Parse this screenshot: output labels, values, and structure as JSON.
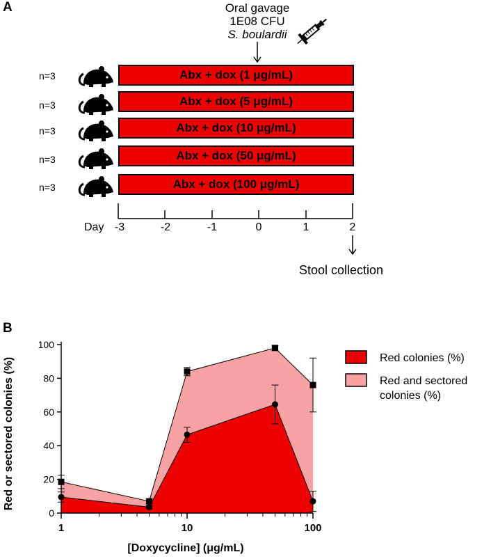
{
  "panel_a": {
    "letter": "A",
    "gavage": {
      "line1": "Oral gavage",
      "line2": "1E08 CFU",
      "line3": "S. boulardii"
    },
    "groups": [
      {
        "n": "n=3",
        "label": "Abx + dox (1 μg/mL)"
      },
      {
        "n": "n=3",
        "label": "Abx + dox (5 μg/mL)"
      },
      {
        "n": "n=3",
        "label": "Abx + dox (10 μg/mL)"
      },
      {
        "n": "n=3",
        "label": "Abx + dox (50 μg/mL)"
      },
      {
        "n": "n=3",
        "label": "Abx + dox (100 μg/mL)"
      }
    ],
    "timeline": {
      "label": "Day",
      "ticks": [
        "-3",
        "-2",
        "-1",
        "0",
        "1",
        "2"
      ]
    },
    "stool": "Stool collection",
    "icons": {
      "mouse": "mouse-icon",
      "syringe": "syringe-icon"
    },
    "colors": {
      "bar": "#ee0000"
    }
  },
  "panel_b": {
    "letter": "B"
  },
  "chart_data": {
    "type": "area",
    "title": "",
    "xlabel": "[Doxycycline] (μg/mL)",
    "ylabel": "Red or sectored colonies (%)",
    "xscale": "log",
    "xlim": [
      1,
      100
    ],
    "ylim": [
      0,
      100
    ],
    "x_ticks": [
      1,
      10,
      100
    ],
    "x_tick_labels": [
      "1",
      "10",
      "100"
    ],
    "y_ticks": [
      0,
      20,
      40,
      60,
      80,
      100
    ],
    "y_tick_labels": [
      "0",
      "20",
      "40",
      "60",
      "80",
      "100"
    ],
    "x": [
      1,
      5,
      10,
      50,
      100
    ],
    "series": [
      {
        "name": "Red and sectored colonies (%)",
        "legend_lines": [
          "Red and sectored",
          "colonies (%)"
        ],
        "marker": "square",
        "color": "#f7a3a3",
        "values": [
          18.5,
          7,
          84,
          98,
          76
        ],
        "errors": [
          4,
          1.5,
          2.5,
          1.5,
          16
        ]
      },
      {
        "name": "Red colonies (%)",
        "legend_lines": [
          "Red colonies (%)"
        ],
        "marker": "circle",
        "color": "#ee0000",
        "values": [
          9.5,
          3.5,
          46.5,
          64.5,
          7
        ],
        "errors": [
          3,
          1,
          4.5,
          11.5,
          6
        ]
      }
    ],
    "legend_position": "right"
  }
}
